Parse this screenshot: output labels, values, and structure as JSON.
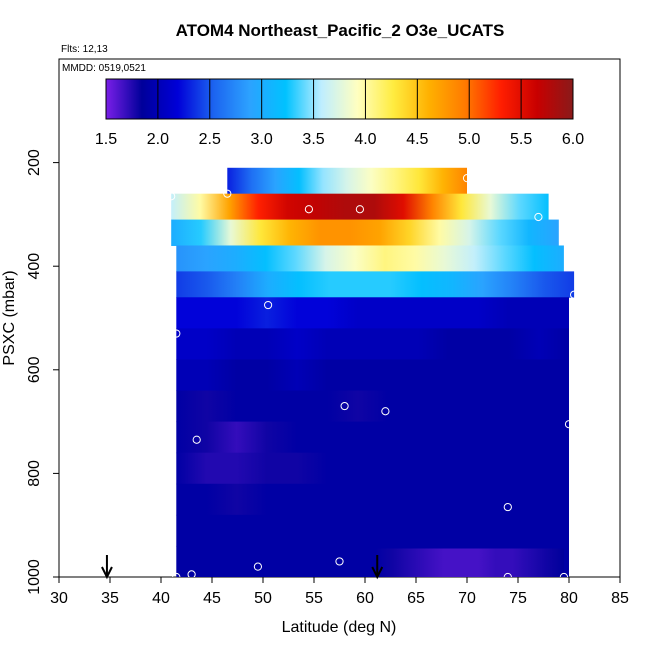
{
  "chart_data": {
    "type": "heatmap",
    "title": "ATOM4 Northeast_Pacific_2 O3e_UCATS",
    "flights_label": "Flts: 12,13",
    "dates_label": "MMDD: 0519,0521",
    "xlabel": "Latitude (deg N)",
    "ylabel": "PSXC (mbar)",
    "xlim": [
      30,
      85
    ],
    "ylim": [
      1000,
      0
    ],
    "x_ticks": [
      "30",
      "35",
      "40",
      "45",
      "50",
      "55",
      "60",
      "65",
      "70",
      "75",
      "80",
      "85"
    ],
    "y_ticks": [
      "200",
      "400",
      "600",
      "800",
      "1000"
    ],
    "colorbar": {
      "min": 1.5,
      "max": 6.0,
      "ticks": [
        "1.5",
        "2.0",
        "2.5",
        "3.0",
        "3.5",
        "4.0",
        "4.5",
        "5.0",
        "5.5",
        "6.0"
      ],
      "colors": [
        "#7a1fe8",
        "#00009a",
        "#0000d8",
        "#1c64f0",
        "#2ca2ff",
        "#00c2ff",
        "#bfeeff",
        "#ffffc0",
        "#ffec40",
        "#ffb000",
        "#ff7a00",
        "#ff1e00",
        "#c80000",
        "#8a1a1a"
      ]
    },
    "layers": [
      {
        "p_top": 210,
        "p_bot": 260,
        "lat_start": 46.5,
        "lat_end": 70,
        "values": [
          2.3,
          2.6,
          2.9,
          3.2,
          3.5,
          3.7,
          3.9,
          4.1,
          4.3,
          4.6,
          4.9
        ]
      },
      {
        "p_top": 260,
        "p_bot": 310,
        "lat_start": 41,
        "lat_end": 78,
        "values": [
          3.6,
          4.0,
          4.7,
          5.3,
          5.6,
          5.7,
          5.8,
          5.8,
          5.5,
          4.9,
          4.3,
          3.8,
          3.4,
          3.2
        ]
      },
      {
        "p_top": 310,
        "p_bot": 360,
        "lat_start": 41,
        "lat_end": 79,
        "values": [
          3.0,
          3.3,
          3.8,
          4.3,
          4.6,
          4.8,
          4.8,
          4.7,
          4.4,
          4.0,
          3.7,
          3.4,
          3.1,
          2.9
        ]
      },
      {
        "p_top": 360,
        "p_bot": 410,
        "lat_start": 41.5,
        "lat_end": 79.5,
        "values": [
          2.8,
          2.9,
          3.0,
          3.2,
          3.4,
          3.7,
          3.9,
          4.1,
          4.0,
          3.8,
          3.6,
          3.4,
          3.2,
          3.0
        ]
      },
      {
        "p_top": 410,
        "p_bot": 460,
        "lat_start": 41.5,
        "lat_end": 80.5,
        "values": [
          2.4,
          2.5,
          2.7,
          3.0,
          3.2,
          3.3,
          3.3,
          3.3,
          3.2,
          3.1,
          2.9,
          2.7,
          2.5,
          2.4
        ]
      },
      {
        "p_top": 460,
        "p_bot": 520,
        "lat_start": 41.5,
        "lat_end": 80,
        "values": [
          2.2,
          2.2,
          2.2,
          2.3,
          2.2,
          2.2,
          2.1,
          2.1,
          2.1,
          2.1,
          2.1,
          2.0,
          2.0,
          2.0
        ]
      },
      {
        "p_top": 520,
        "p_bot": 580,
        "lat_start": 41.5,
        "lat_end": 80,
        "values": [
          2.1,
          2.1,
          2.0,
          2.0,
          2.1,
          2.0,
          2.0,
          2.0,
          2.0,
          1.9,
          1.9,
          1.9,
          2.0,
          1.9
        ]
      },
      {
        "p_top": 580,
        "p_bot": 640,
        "lat_start": 41.5,
        "lat_end": 80,
        "values": [
          2.0,
          2.0,
          1.9,
          1.9,
          2.0,
          1.9,
          1.9,
          1.9,
          1.9,
          1.9,
          1.9,
          1.9,
          1.9,
          1.9
        ]
      },
      {
        "p_top": 640,
        "p_bot": 700,
        "lat_start": 41.5,
        "lat_end": 80,
        "values": [
          1.9,
          1.8,
          1.9,
          1.9,
          1.9,
          1.9,
          1.8,
          1.9,
          1.9,
          1.9,
          1.9,
          1.9,
          1.9,
          1.9
        ]
      },
      {
        "p_top": 700,
        "p_bot": 760,
        "lat_start": 41.5,
        "lat_end": 80,
        "values": [
          1.9,
          1.8,
          1.7,
          1.8,
          1.9,
          1.9,
          1.9,
          1.9,
          1.9,
          1.9,
          1.9,
          1.9,
          1.9,
          1.9
        ]
      },
      {
        "p_top": 760,
        "p_bot": 820,
        "lat_start": 41.5,
        "lat_end": 80,
        "values": [
          1.9,
          1.75,
          1.75,
          1.8,
          1.8,
          1.9,
          1.9,
          1.9,
          1.9,
          1.9,
          1.9,
          1.9,
          1.9,
          1.9
        ]
      },
      {
        "p_top": 820,
        "p_bot": 880,
        "lat_start": 41.5,
        "lat_end": 80,
        "values": [
          1.9,
          1.9,
          1.8,
          1.9,
          1.9,
          1.9,
          1.9,
          1.9,
          1.9,
          1.9,
          1.9,
          1.9,
          1.9,
          1.9
        ]
      },
      {
        "p_top": 880,
        "p_bot": 940,
        "lat_start": 41.5,
        "lat_end": 80,
        "values": [
          1.9,
          1.9,
          1.9,
          1.9,
          1.9,
          1.9,
          1.9,
          1.9,
          1.9,
          1.9,
          1.9,
          1.9,
          1.9,
          1.9
        ]
      },
      {
        "p_top": 940,
        "p_bot": 1000,
        "lat_start": 41.5,
        "lat_end": 80,
        "values": [
          1.9,
          1.9,
          1.9,
          1.9,
          1.9,
          1.9,
          1.9,
          1.9,
          1.9,
          1.9,
          1.9,
          1.9,
          1.9,
          1.9
        ]
      },
      {
        "p_top": 945,
        "p_bot": 1000,
        "lat_start": 61,
        "lat_end": 79.5,
        "values": [
          1.9,
          1.8,
          1.75,
          1.7,
          1.65,
          1.65,
          1.65,
          1.7,
          1.7,
          1.75,
          1.8,
          1.85
        ]
      }
    ],
    "sample_points": [
      {
        "lat": 70,
        "p": 230
      },
      {
        "lat": 41,
        "p": 265
      },
      {
        "lat": 46.5,
        "p": 260
      },
      {
        "lat": 54.5,
        "p": 290
      },
      {
        "lat": 59.5,
        "p": 290
      },
      {
        "lat": 77,
        "p": 305
      },
      {
        "lat": 80.5,
        "p": 455
      },
      {
        "lat": 50.5,
        "p": 475
      },
      {
        "lat": 41.5,
        "p": 530
      },
      {
        "lat": 58,
        "p": 670
      },
      {
        "lat": 62,
        "p": 680
      },
      {
        "lat": 80,
        "p": 705
      },
      {
        "lat": 43.5,
        "p": 735
      },
      {
        "lat": 74,
        "p": 865
      },
      {
        "lat": 57.5,
        "p": 970
      },
      {
        "lat": 49.5,
        "p": 980
      },
      {
        "lat": 43,
        "p": 995
      },
      {
        "lat": 41.5,
        "p": 1000
      },
      {
        "lat": 74,
        "p": 1000
      },
      {
        "lat": 79.5,
        "p": 1000
      }
    ],
    "arrows": [
      {
        "lat": 34.7
      },
      {
        "lat": 61.2
      }
    ]
  }
}
